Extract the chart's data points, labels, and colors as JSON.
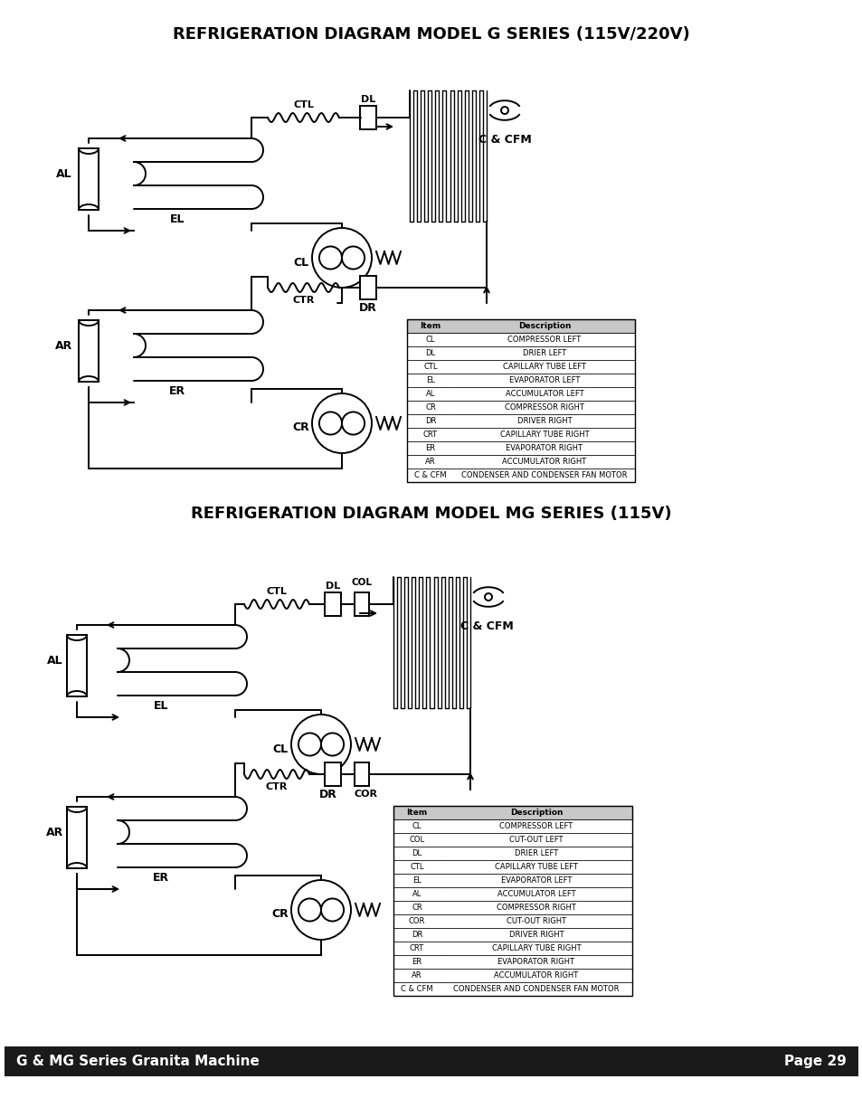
{
  "title1": "REFRIGERATION DIAGRAM MODEL G SERIES (115V/220V)",
  "title2": "REFRIGERATION DIAGRAM MODEL MG SERIES (115V)",
  "footer_left": "G & MG Series Granita Machine",
  "footer_right": "Page 29",
  "table1_headers": [
    "Item",
    "Description"
  ],
  "table1_rows": [
    [
      "CL",
      "COMPRESSOR LEFT"
    ],
    [
      "DL",
      "DRIER LEFT"
    ],
    [
      "CTL",
      "CAPILLARY TUBE LEFT"
    ],
    [
      "EL",
      "EVAPORATOR LEFT"
    ],
    [
      "AL",
      "ACCUMULATOR LEFT"
    ],
    [
      "CR",
      "COMPRESSOR RIGHT"
    ],
    [
      "DR",
      "DRIVER RIGHT"
    ],
    [
      "CRT",
      "CAPILLARY TUBE RIGHT"
    ],
    [
      "ER",
      "EVAPORATOR RIGHT"
    ],
    [
      "AR",
      "ACCUMULATOR RIGHT"
    ],
    [
      "C & CFM",
      "CONDENSER AND CONDENSER FAN MOTOR"
    ]
  ],
  "table2_headers": [
    "Item",
    "Description"
  ],
  "table2_rows": [
    [
      "CL",
      "COMPRESSOR LEFT"
    ],
    [
      "COL",
      "CUT-OUT LEFT"
    ],
    [
      "DL",
      "DRIER LEFT"
    ],
    [
      "CTL",
      "CAPILLARY TUBE LEFT"
    ],
    [
      "EL",
      "EVAPORATOR LEFT"
    ],
    [
      "AL",
      "ACCUMULATOR LEFT"
    ],
    [
      "CR",
      "COMPRESSOR RIGHT"
    ],
    [
      "COR",
      "CUT-OUT RIGHT"
    ],
    [
      "DR",
      "DRIVER RIGHT"
    ],
    [
      "CRT",
      "CAPILLARY TUBE RIGHT"
    ],
    [
      "ER",
      "EVAPORATOR RIGHT"
    ],
    [
      "AR",
      "ACCUMULATOR RIGHT"
    ],
    [
      "C & CFM",
      "CONDENSER AND CONDENSER FAN MOTOR"
    ]
  ],
  "bg_color": "#ffffff",
  "line_color": "#000000",
  "footer_bg": "#1a1a1a",
  "footer_fg": "#ffffff"
}
